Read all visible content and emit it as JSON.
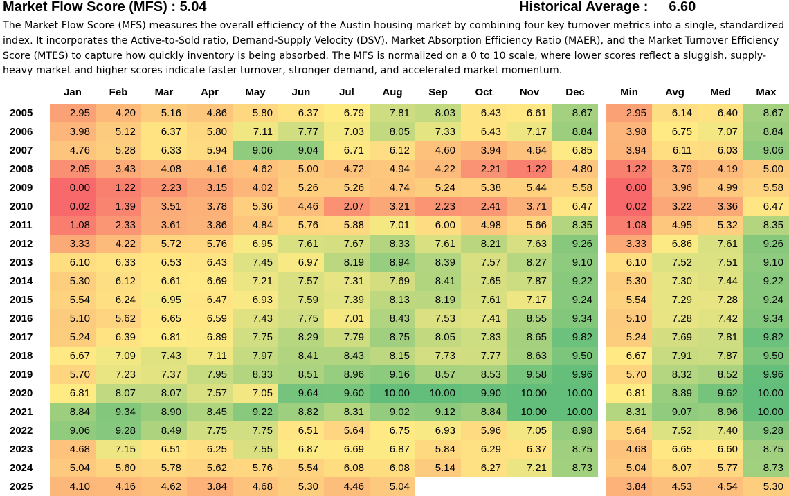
{
  "header": {
    "title": "Market Flow Score (MFS) : 5.04",
    "hist_label": "Historical Average :",
    "hist_value": "6.60"
  },
  "description": "The Market Flow Score (MFS) measures the overall efficiency of the Austin housing market by combining four key turnover metrics into a single, standardized index. It incorporates the Active-to-Sold ratio, Demand-Supply Velocity (DSV), Market Absorption Efficiency Ratio (MAER), and the Market Turnover Efficiency Score (MTES) to capture how quickly inventory is being absorbed. The MFS is normalized on a 0 to 10 scale, where lower scores reflect a sluggish, supply-heavy market and higher scores indicate faster turnover, stronger demand, and accelerated market momentum.",
  "colors": {
    "low": "#F8696B",
    "mid": "#FFEB84",
    "high": "#63BE7B"
  },
  "chart_data": {
    "type": "heatmap",
    "title": "Market Flow Score (MFS)",
    "color_scale": {
      "min": 0,
      "mid": 6.8,
      "max": 10
    },
    "months": [
      "Jan",
      "Feb",
      "Mar",
      "Apr",
      "May",
      "Jun",
      "Jul",
      "Aug",
      "Sep",
      "Oct",
      "Nov",
      "Dec"
    ],
    "stats_headers": [
      "Min",
      "Avg",
      "Med",
      "Max"
    ],
    "rows": [
      {
        "year": "2005",
        "values": [
          "2.95",
          "4.20",
          "5.16",
          "4.86",
          "5.80",
          "6.37",
          "6.79",
          "7.81",
          "8.03",
          "6.43",
          "6.61",
          "8.67"
        ],
        "stats": [
          "2.95",
          "6.14",
          "6.40",
          "8.67"
        ]
      },
      {
        "year": "2006",
        "values": [
          "3.98",
          "5.12",
          "6.37",
          "5.80",
          "7.11",
          "7.77",
          "7.03",
          "8.05",
          "7.33",
          "6.43",
          "7.17",
          "8.84"
        ],
        "stats": [
          "3.98",
          "6.75",
          "7.07",
          "8.84"
        ]
      },
      {
        "year": "2007",
        "values": [
          "4.76",
          "5.28",
          "6.33",
          "5.94",
          "9.06",
          "9.04",
          "6.71",
          "6.12",
          "4.60",
          "3.94",
          "4.64",
          "6.85"
        ],
        "stats": [
          "3.94",
          "6.11",
          "6.03",
          "9.06"
        ]
      },
      {
        "year": "2008",
        "values": [
          "2.05",
          "3.43",
          "4.08",
          "4.16",
          "4.62",
          "5.00",
          "4.72",
          "4.94",
          "4.22",
          "2.21",
          "1.22",
          "4.80"
        ],
        "stats": [
          "1.22",
          "3.79",
          "4.19",
          "5.00"
        ]
      },
      {
        "year": "2009",
        "values": [
          "0.00",
          "1.22",
          "2.23",
          "3.15",
          "4.02",
          "5.26",
          "5.26",
          "4.74",
          "5.24",
          "5.38",
          "5.44",
          "5.58"
        ],
        "stats": [
          "0.00",
          "3.96",
          "4.99",
          "5.58"
        ]
      },
      {
        "year": "2010",
        "values": [
          "0.02",
          "1.39",
          "3.51",
          "3.78",
          "5.36",
          "4.46",
          "2.07",
          "3.21",
          "2.23",
          "2.41",
          "3.71",
          "6.47"
        ],
        "stats": [
          "0.02",
          "3.22",
          "3.36",
          "6.47"
        ]
      },
      {
        "year": "2011",
        "values": [
          "1.08",
          "2.33",
          "3.61",
          "3.86",
          "4.84",
          "5.76",
          "5.88",
          "7.01",
          "6.00",
          "4.98",
          "5.66",
          "8.35"
        ],
        "stats": [
          "1.08",
          "4.95",
          "5.32",
          "8.35"
        ]
      },
      {
        "year": "2012",
        "values": [
          "3.33",
          "4.22",
          "5.72",
          "5.76",
          "6.95",
          "7.61",
          "7.67",
          "8.33",
          "7.61",
          "8.21",
          "7.63",
          "9.26"
        ],
        "stats": [
          "3.33",
          "6.86",
          "7.61",
          "9.26"
        ]
      },
      {
        "year": "2013",
        "values": [
          "6.10",
          "6.33",
          "6.53",
          "6.43",
          "7.45",
          "6.97",
          "8.19",
          "8.94",
          "8.39",
          "7.57",
          "8.27",
          "9.10"
        ],
        "stats": [
          "6.10",
          "7.52",
          "7.51",
          "9.10"
        ]
      },
      {
        "year": "2014",
        "values": [
          "5.30",
          "6.12",
          "6.61",
          "6.69",
          "7.21",
          "7.57",
          "7.31",
          "7.69",
          "8.41",
          "7.65",
          "7.87",
          "9.22"
        ],
        "stats": [
          "5.30",
          "7.30",
          "7.44",
          "9.22"
        ]
      },
      {
        "year": "2015",
        "values": [
          "5.54",
          "6.24",
          "6.95",
          "6.47",
          "6.93",
          "7.59",
          "7.39",
          "8.13",
          "8.19",
          "7.61",
          "7.17",
          "9.24"
        ],
        "stats": [
          "5.54",
          "7.29",
          "7.28",
          "9.24"
        ]
      },
      {
        "year": "2016",
        "values": [
          "5.10",
          "5.62",
          "6.65",
          "6.59",
          "7.43",
          "7.75",
          "7.01",
          "8.43",
          "7.53",
          "7.41",
          "8.55",
          "9.34"
        ],
        "stats": [
          "5.10",
          "7.28",
          "7.42",
          "9.34"
        ]
      },
      {
        "year": "2017",
        "values": [
          "5.24",
          "6.39",
          "6.81",
          "6.89",
          "7.75",
          "8.29",
          "7.79",
          "8.75",
          "8.05",
          "7.83",
          "8.65",
          "9.82"
        ],
        "stats": [
          "5.24",
          "7.69",
          "7.81",
          "9.82"
        ]
      },
      {
        "year": "2018",
        "values": [
          "6.67",
          "7.09",
          "7.43",
          "7.11",
          "7.97",
          "8.41",
          "8.43",
          "8.15",
          "7.73",
          "7.77",
          "8.63",
          "9.50"
        ],
        "stats": [
          "6.67",
          "7.91",
          "7.87",
          "9.50"
        ]
      },
      {
        "year": "2019",
        "values": [
          "5.70",
          "7.23",
          "7.37",
          "7.95",
          "8.33",
          "8.51",
          "8.96",
          "9.16",
          "8.57",
          "8.53",
          "9.58",
          "9.96"
        ],
        "stats": [
          "5.70",
          "8.32",
          "8.52",
          "9.96"
        ]
      },
      {
        "year": "2020",
        "values": [
          "6.81",
          "8.07",
          "8.07",
          "7.57",
          "7.05",
          "9.64",
          "9.60",
          "10.00",
          "10.00",
          "9.90",
          "10.00",
          "10.00"
        ],
        "stats": [
          "6.81",
          "8.89",
          "9.62",
          "10.00"
        ]
      },
      {
        "year": "2021",
        "values": [
          "8.84",
          "9.34",
          "8.90",
          "8.45",
          "9.22",
          "8.82",
          "8.31",
          "9.02",
          "9.12",
          "8.84",
          "10.00",
          "10.00"
        ],
        "stats": [
          "8.31",
          "9.07",
          "8.96",
          "10.00"
        ]
      },
      {
        "year": "2022",
        "values": [
          "9.06",
          "9.28",
          "8.49",
          "7.75",
          "7.75",
          "6.51",
          "5.64",
          "6.75",
          "6.93",
          "5.96",
          "7.05",
          "8.98"
        ],
        "stats": [
          "5.64",
          "7.52",
          "7.40",
          "9.28"
        ]
      },
      {
        "year": "2023",
        "values": [
          "4.68",
          "7.15",
          "6.51",
          "6.25",
          "7.55",
          "6.87",
          "6.69",
          "6.87",
          "5.84",
          "6.29",
          "6.37",
          "8.75"
        ],
        "stats": [
          "4.68",
          "6.65",
          "6.60",
          "8.75"
        ]
      },
      {
        "year": "2024",
        "values": [
          "5.04",
          "5.60",
          "5.78",
          "5.62",
          "5.76",
          "5.54",
          "6.08",
          "6.08",
          "5.14",
          "6.27",
          "7.21",
          "8.73"
        ],
        "stats": [
          "5.04",
          "6.07",
          "5.77",
          "8.73"
        ]
      },
      {
        "year": "2025",
        "values": [
          "4.10",
          "4.16",
          "4.62",
          "3.84",
          "4.68",
          "5.30",
          "4.46",
          "5.04",
          null,
          null,
          null,
          null
        ],
        "stats": [
          "3.84",
          "4.53",
          "4.54",
          "5.30"
        ]
      }
    ]
  }
}
